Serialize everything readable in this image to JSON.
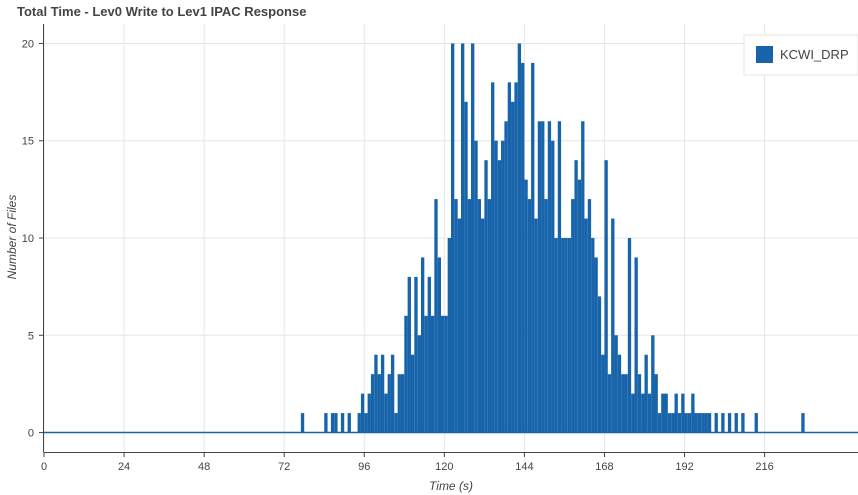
{
  "chart_data": {
    "type": "bar",
    "title": "Total Time - Lev0 Write to Lev1 IPAC Response",
    "xlabel": "Time (s)",
    "ylabel": "Number of Files",
    "xlim": [
      0,
      244
    ],
    "ylim": [
      -1,
      21
    ],
    "bin_width": 1,
    "xticks": [
      0,
      24,
      48,
      72,
      96,
      120,
      144,
      168,
      192,
      216
    ],
    "yticks": [
      0,
      5,
      10,
      15,
      20
    ],
    "grid": true,
    "legend": "top-right",
    "series": [
      {
        "name": "KCWI_DRP",
        "color": "#1764ab",
        "x": [
          77,
          84,
          86,
          87,
          89,
          91,
          94,
          95,
          96,
          97,
          98,
          99,
          100,
          101,
          102,
          103,
          104,
          105,
          106,
          107,
          108,
          109,
          110,
          111,
          112,
          113,
          114,
          115,
          116,
          117,
          118,
          119,
          120,
          121,
          122,
          123,
          124,
          125,
          126,
          127,
          128,
          129,
          130,
          131,
          132,
          133,
          134,
          135,
          136,
          137,
          138,
          139,
          140,
          141,
          142,
          143,
          144,
          145,
          146,
          147,
          148,
          149,
          150,
          151,
          152,
          153,
          154,
          155,
          156,
          157,
          158,
          159,
          160,
          161,
          162,
          163,
          164,
          165,
          166,
          167,
          168,
          169,
          170,
          171,
          172,
          173,
          174,
          175,
          176,
          177,
          178,
          179,
          180,
          181,
          182,
          183,
          184,
          185,
          186,
          187,
          188,
          189,
          190,
          191,
          192,
          193,
          194,
          195,
          196,
          197,
          198,
          199,
          201,
          203,
          205,
          207,
          209,
          213,
          227
        ],
        "values": [
          1,
          1,
          1,
          1,
          1,
          1,
          1,
          2,
          1,
          2,
          3,
          4,
          3,
          4,
          2,
          3,
          4,
          1,
          3,
          3,
          6,
          8,
          4,
          8,
          5,
          9,
          6,
          8,
          6,
          12,
          9,
          6,
          6,
          10,
          20,
          12,
          11,
          20,
          17,
          12,
          20,
          15,
          12,
          11,
          14,
          12,
          18,
          15,
          14,
          15,
          16,
          18,
          17,
          18,
          20,
          19,
          13,
          12,
          19,
          11,
          16,
          16,
          12,
          16,
          15,
          10,
          16,
          10,
          10,
          10,
          12,
          14,
          13,
          16,
          11,
          12,
          10,
          9,
          7,
          4,
          14,
          3,
          11,
          5,
          4,
          3,
          3,
          10,
          2,
          9,
          3,
          2,
          4,
          2,
          5,
          3,
          1,
          2,
          2,
          1,
          1,
          2,
          1,
          2,
          1,
          1,
          2,
          1,
          1,
          1,
          1,
          1,
          1,
          1,
          1,
          1,
          1,
          1,
          1
        ]
      }
    ]
  }
}
